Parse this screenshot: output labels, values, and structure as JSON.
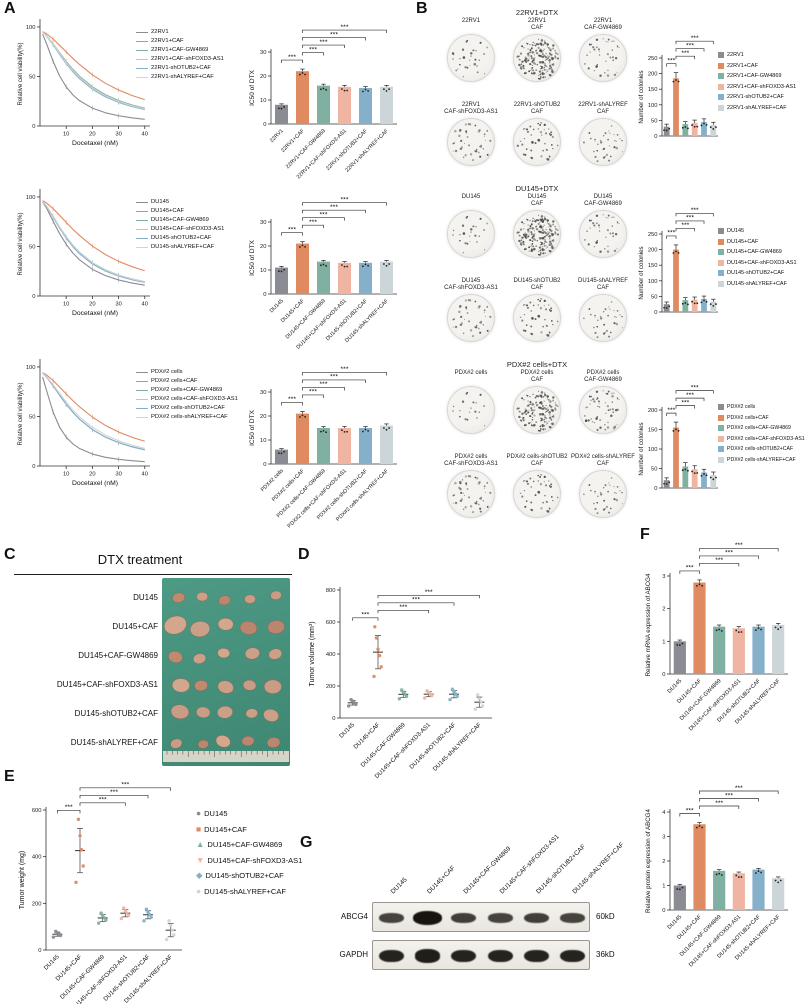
{
  "panel_labels": {
    "a": "A",
    "b": "B",
    "c": "C",
    "d": "D",
    "e": "E",
    "f": "F",
    "g": "G"
  },
  "palette": {
    "gray": "#8b8b94",
    "orange": "#e08a62",
    "teal": "#7fb0a1",
    "pink": "#f0b4a2",
    "blue": "#84b0ca",
    "lightgray": "#ccd6d8"
  },
  "series_colors": [
    "gray",
    "orange",
    "teal",
    "pink",
    "blue",
    "lightgray"
  ],
  "groups": {
    "r22": [
      "22RV1",
      "22RV1+CAF",
      "22RV1+CAF-GW4869",
      "22RV1+CAF-shFOXD3-AS1",
      "22RV1-shOTUB2+CAF",
      "22RV1-shALYREF+CAF"
    ],
    "du": [
      "DU145",
      "DU145+CAF",
      "DU145+CAF-GW4869",
      "DU145+CAF-shFOXD3-AS1",
      "DU145-shOTUB2+CAF",
      "DU145-shALYREF+CAF"
    ],
    "pdx": [
      "PDX#2 cells",
      "PDX#2 cells+CAF",
      "PDX#2 cells+CAF-GW4869",
      "PDX#2 cells+CAF-shFOXD3-AS1",
      "PDX#2 cells-shOTUB2+CAF",
      "PDX#2 cells-shALYREF+CAF"
    ]
  },
  "e_markers": [
    "●",
    "■",
    "▲",
    "▼",
    "◆",
    "●"
  ],
  "chart_data": {
    "a_rows": [
      {
        "curves": {
          "type": "line",
          "cats": "r22",
          "xlabel": "Docetaxel (nM)",
          "ylabel": "Relative cell viability(%)",
          "xlim": [
            0,
            42
          ],
          "xticks": [
            10,
            20,
            30,
            40
          ],
          "ylim": [
            0,
            105
          ],
          "yticks": [
            0,
            50,
            100
          ],
          "x_eval": [
            1,
            2.5,
            5,
            7.5,
            10,
            12.5,
            15,
            20,
            25,
            30,
            35,
            40
          ],
          "ic50": [
            8,
            22,
            16,
            15.5,
            15,
            15.5
          ],
          "hill": 1.6,
          "top": 96
        },
        "ic50_bars": {
          "type": "bar",
          "cats": "r22",
          "ylabel": "IC50 of DTX",
          "ylim": [
            0,
            30
          ],
          "yticks": [
            0,
            10,
            20,
            30
          ],
          "values": [
            8,
            22,
            16,
            15.5,
            15,
            15.5
          ],
          "errors": [
            0.4,
            0.9,
            0.6,
            0.6,
            0.6,
            0.6
          ],
          "sig": [
            [
              0,
              1
            ],
            [
              1,
              2
            ],
            [
              1,
              3
            ],
            [
              1,
              4
            ],
            [
              1,
              5
            ]
          ],
          "sig_label": "***"
        }
      },
      {
        "curves": {
          "type": "line",
          "cats": "du",
          "xlabel": "Docetaxel (nM)",
          "ylabel": "Relative cell viability(%)",
          "xlim": [
            0,
            42
          ],
          "xticks": [
            10,
            20,
            30,
            40
          ],
          "ylim": [
            0,
            105
          ],
          "yticks": [
            0,
            50,
            100
          ],
          "x_eval": [
            1,
            2.5,
            5,
            7.5,
            10,
            12.5,
            15,
            20,
            25,
            30,
            35,
            40
          ],
          "ic50": [
            11,
            21,
            13.5,
            13,
            13,
            13.5
          ],
          "hill": 1.6,
          "top": 97
        },
        "ic50_bars": {
          "type": "bar",
          "cats": "du",
          "ylabel": "IC50 of DTX",
          "ylim": [
            0,
            30
          ],
          "yticks": [
            0,
            10,
            20,
            30
          ],
          "values": [
            11,
            21,
            13.5,
            13,
            13,
            13.5
          ],
          "errors": [
            0.5,
            0.8,
            0.5,
            0.5,
            0.5,
            0.5
          ],
          "sig": [
            [
              0,
              1
            ],
            [
              1,
              2
            ],
            [
              1,
              3
            ],
            [
              1,
              4
            ],
            [
              1,
              5
            ]
          ],
          "sig_label": "***"
        }
      },
      {
        "curves": {
          "type": "line",
          "cats": "pdx",
          "xlabel": "Docetaxel (nM)",
          "ylabel": "Relative cell viability(%)",
          "xlim": [
            0,
            42
          ],
          "xticks": [
            10,
            20,
            30,
            40
          ],
          "ylim": [
            0,
            105
          ],
          "yticks": [
            0,
            50,
            100
          ],
          "x_eval": [
            1,
            2.5,
            5,
            7.5,
            10,
            12.5,
            15,
            20,
            25,
            30,
            35,
            40
          ],
          "ic50": [
            6,
            21,
            15,
            15,
            15,
            16
          ],
          "hill": 1.6,
          "top": 95
        },
        "ic50_bars": {
          "type": "bar",
          "cats": "pdx",
          "ylabel": "IC50 of DTX",
          "ylim": [
            0,
            30
          ],
          "yticks": [
            0,
            10,
            20,
            30
          ],
          "values": [
            6,
            21,
            15,
            15,
            15,
            16
          ],
          "errors": [
            0.4,
            0.9,
            0.6,
            0.6,
            0.6,
            0.7
          ],
          "sig": [
            [
              0,
              1
            ],
            [
              1,
              2
            ],
            [
              1,
              3
            ],
            [
              1,
              4
            ],
            [
              1,
              5
            ]
          ],
          "sig_label": "***"
        }
      }
    ],
    "b_blocks": [
      {
        "title": "22RV1+DTX",
        "well_labels": [
          [
            "22RV1"
          ],
          [
            "22RV1",
            "CAF"
          ],
          [
            "22RV1",
            "CAF-GW4869"
          ],
          [
            "22RV1",
            "CAF-shFOXD3-AS1"
          ],
          [
            "22RV1-shOTUB2",
            "CAF"
          ],
          [
            "22RV1-shALYREF",
            "CAF"
          ]
        ],
        "colony_counts": [
          30,
          185,
          38,
          42,
          45,
          36
        ],
        "bars": {
          "type": "bar",
          "cats": "r22",
          "ylabel": "Number of colonies",
          "ylim": [
            0,
            250
          ],
          "yticks": [
            0,
            50,
            100,
            150,
            200,
            250
          ],
          "values": [
            30,
            185,
            38,
            42,
            45,
            36
          ],
          "errors": [
            8,
            18,
            8,
            9,
            10,
            8
          ],
          "sig": [
            [
              0,
              1
            ],
            [
              1,
              3
            ],
            [
              1,
              4
            ],
            [
              1,
              5
            ]
          ],
          "sig_label": "***",
          "no_xlabels": true
        }
      },
      {
        "title": "DU145+DTX",
        "well_labels": [
          [
            "DU145"
          ],
          [
            "DU145",
            "CAF"
          ],
          [
            "DU145",
            "CAF-GW4869"
          ],
          [
            "DU145",
            "CAF-shFOXD3-AS1"
          ],
          [
            "DU145-shOTUB2",
            "CAF"
          ],
          [
            "DU145-shALYREF",
            "CAF"
          ]
        ],
        "colony_counts": [
          25,
          200,
          38,
          40,
          42,
          33
        ],
        "bars": {
          "type": "bar",
          "cats": "du",
          "ylabel": "Number of colonies",
          "ylim": [
            0,
            250
          ],
          "yticks": [
            0,
            50,
            100,
            150,
            200,
            250
          ],
          "values": [
            25,
            200,
            38,
            40,
            42,
            33
          ],
          "errors": [
            7,
            15,
            8,
            8,
            9,
            8
          ],
          "sig": [
            [
              0,
              1
            ],
            [
              1,
              3
            ],
            [
              1,
              4
            ],
            [
              1,
              5
            ]
          ],
          "sig_label": "***",
          "no_xlabels": true
        }
      },
      {
        "title": "PDX#2 cells+DTX",
        "well_labels": [
          [
            "PDX#2 cells"
          ],
          [
            "PDX#2 cells",
            "CAF"
          ],
          [
            "PDX#2 cells",
            "CAF-GW4869"
          ],
          [
            "PDX#2 cells",
            "CAF-shFOXD3-AS1"
          ],
          [
            "PDX#2 cells-shOTUB2",
            "CAF"
          ],
          [
            "PDX#2 cells-shALYREF",
            "CAF"
          ]
        ],
        "colony_counts": [
          20,
          155,
          55,
          48,
          40,
          33
        ],
        "bars": {
          "type": "bar",
          "cats": "pdx",
          "ylabel": "Number of colonies",
          "ylim": [
            0,
            200
          ],
          "yticks": [
            0,
            50,
            100,
            150,
            200
          ],
          "values": [
            20,
            155,
            55,
            48,
            40,
            33
          ],
          "errors": [
            6,
            14,
            10,
            9,
            8,
            8
          ],
          "sig": [
            [
              0,
              1
            ],
            [
              1,
              3
            ],
            [
              1,
              4
            ],
            [
              1,
              5
            ]
          ],
          "sig_label": "***",
          "no_xlabels": true
        }
      }
    ],
    "d_volume": {
      "type": "scatter",
      "cats": "du",
      "ylabel": "Tumor volume (mm³)",
      "ylim": [
        0,
        800
      ],
      "yticks": [
        0,
        200,
        400,
        600,
        800
      ],
      "points": [
        [
          75,
          85,
          95,
          105,
          115
        ],
        [
          260,
          320,
          390,
          430,
          500,
          570
        ],
        [
          120,
          135,
          150,
          160,
          175
        ],
        [
          125,
          140,
          150,
          160,
          170
        ],
        [
          115,
          135,
          150,
          165,
          180
        ],
        [
          55,
          75,
          100,
          120,
          145
        ]
      ],
      "sig": [
        [
          0,
          1
        ],
        [
          1,
          3
        ],
        [
          1,
          4
        ],
        [
          1,
          5
        ]
      ],
      "sig_label": "***",
      "show_xlabels": true
    },
    "e_weight": {
      "type": "scatter",
      "cats": "du",
      "ylabel": "Tumor weight (mg)",
      "ylim": [
        0,
        600
      ],
      "yticks": [
        0,
        200,
        400,
        600
      ],
      "points": [
        [
          55,
          62,
          68,
          74,
          80
        ],
        [
          290,
          360,
          430,
          490,
          560
        ],
        [
          115,
          128,
          138,
          148,
          158
        ],
        [
          135,
          148,
          158,
          168,
          180
        ],
        [
          125,
          140,
          152,
          163,
          175
        ],
        [
          45,
          65,
          85,
          105,
          125
        ]
      ],
      "sig": [
        [
          0,
          1
        ],
        [
          1,
          3
        ],
        [
          1,
          4
        ],
        [
          1,
          5
        ]
      ],
      "sig_label": "***",
      "show_xlabels": true
    },
    "f_mrna": {
      "type": "bar",
      "cats": "du",
      "ylabel": "Relative mRNA expression of ABCG4",
      "ylim": [
        0,
        3
      ],
      "yticks": [
        0,
        1,
        2,
        3
      ],
      "values": [
        1.0,
        2.8,
        1.45,
        1.4,
        1.45,
        1.5
      ],
      "errors": [
        0.04,
        0.08,
        0.05,
        0.05,
        0.05,
        0.05
      ],
      "sig": [
        [
          0,
          1
        ],
        [
          1,
          3
        ],
        [
          1,
          4
        ],
        [
          1,
          5
        ]
      ],
      "sig_label": "***"
    },
    "f_protein": {
      "type": "bar",
      "cats": "du",
      "ylabel": "Relative protein expression of ABCG4",
      "ylim": [
        0,
        4
      ],
      "yticks": [
        0,
        1,
        2,
        3,
        4
      ],
      "values": [
        1.0,
        3.5,
        1.6,
        1.5,
        1.65,
        1.3
      ],
      "errors": [
        0.04,
        0.07,
        0.05,
        0.05,
        0.05,
        0.05
      ],
      "sig": [
        [
          0,
          1
        ],
        [
          1,
          3
        ],
        [
          1,
          4
        ],
        [
          1,
          5
        ]
      ],
      "sig_label": "***"
    }
  },
  "panel_c": {
    "title": "DTX treatment",
    "rows": [
      {
        "label": "DU145",
        "size": 8
      },
      {
        "label": "DU145+CAF",
        "size": 15
      },
      {
        "label": "DU145+CAF-GW4869",
        "size": 10
      },
      {
        "label": "DU145+CAF-shFOXD3-AS1",
        "size": 11
      },
      {
        "label": "DU145-shOTUB2+CAF",
        "size": 11
      },
      {
        "label": "DU145-shALYREF+CAF",
        "size": 9
      }
    ]
  },
  "panel_g": {
    "lanes": "du",
    "targets": [
      {
        "label": "ABCG4",
        "size": "60kD",
        "intensities": [
          0.55,
          1,
          0.6,
          0.55,
          0.6,
          0.55
        ]
      },
      {
        "label": "GAPDH",
        "size": "36kD",
        "intensities": [
          0.85,
          0.9,
          0.85,
          0.85,
          0.85,
          0.85
        ]
      }
    ]
  }
}
